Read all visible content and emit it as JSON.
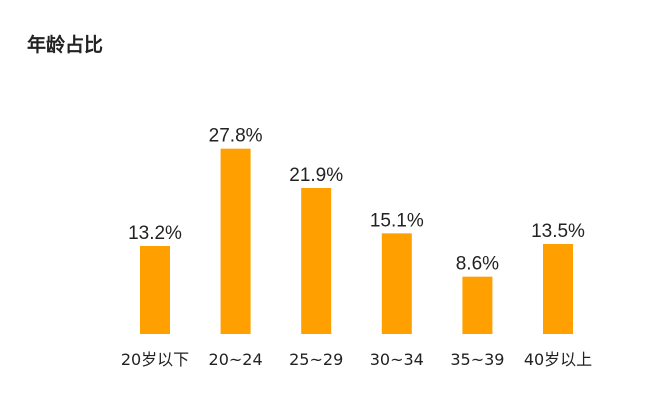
{
  "chart_data": {
    "type": "bar",
    "title": "年龄占比",
    "categories": [
      "20岁以下",
      "20~24",
      "25~29",
      "30~34",
      "35~39",
      "40岁以上"
    ],
    "values": [
      13.2,
      27.8,
      21.9,
      15.1,
      8.6,
      13.5
    ],
    "value_labels": [
      "13.2%",
      "27.8%",
      "21.9%",
      "15.1%",
      "8.6%",
      "13.5%"
    ],
    "unit": "%",
    "bar_color": "#FFA000",
    "ylim": [
      0,
      30
    ],
    "grid": false,
    "legend": "none",
    "y_axis_visible": false
  }
}
